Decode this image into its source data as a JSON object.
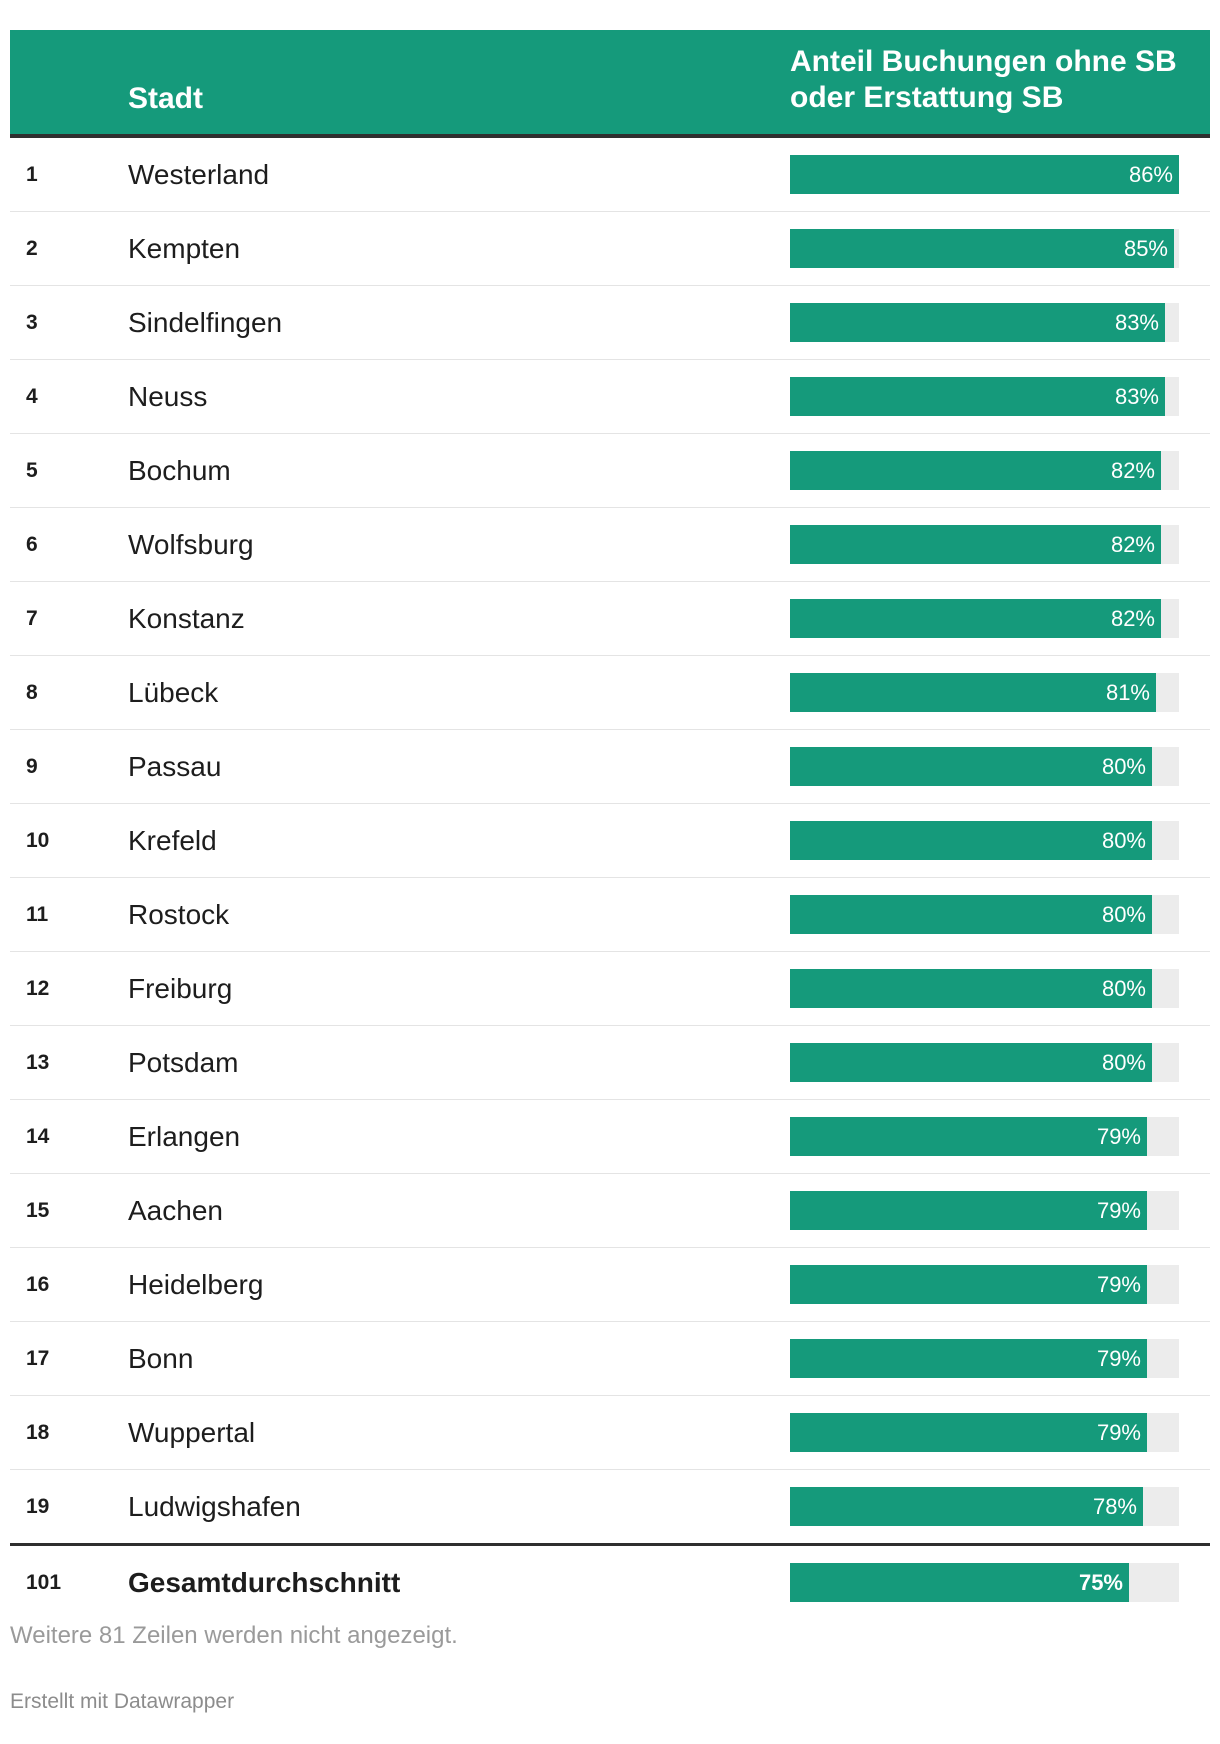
{
  "header": {
    "city_label": "Stadt",
    "share_label_line1": "Anteil Buchungen ohne SB",
    "share_label_line2": "oder Erstattung SB"
  },
  "chart_data": {
    "type": "table",
    "columns": [
      "",
      "Stadt",
      "Anteil Buchungen ohne SB oder Erstattung SB"
    ],
    "rows": [
      {
        "rank": "1",
        "city": "Westerland",
        "value": 86,
        "label": "86%"
      },
      {
        "rank": "2",
        "city": "Kempten",
        "value": 85,
        "label": "85%"
      },
      {
        "rank": "3",
        "city": "Sindelfingen",
        "value": 83,
        "label": "83%"
      },
      {
        "rank": "4",
        "city": "Neuss",
        "value": 83,
        "label": "83%"
      },
      {
        "rank": "5",
        "city": "Bochum",
        "value": 82,
        "label": "82%"
      },
      {
        "rank": "6",
        "city": "Wolfsburg",
        "value": 82,
        "label": "82%"
      },
      {
        "rank": "7",
        "city": "Konstanz",
        "value": 82,
        "label": "82%"
      },
      {
        "rank": "8",
        "city": "Lübeck",
        "value": 81,
        "label": "81%"
      },
      {
        "rank": "9",
        "city": "Passau",
        "value": 80,
        "label": "80%"
      },
      {
        "rank": "10",
        "city": "Krefeld",
        "value": 80,
        "label": "80%"
      },
      {
        "rank": "11",
        "city": "Rostock",
        "value": 80,
        "label": "80%"
      },
      {
        "rank": "12",
        "city": "Freiburg",
        "value": 80,
        "label": "80%"
      },
      {
        "rank": "13",
        "city": "Potsdam",
        "value": 80,
        "label": "80%"
      },
      {
        "rank": "14",
        "city": "Erlangen",
        "value": 79,
        "label": "79%"
      },
      {
        "rank": "15",
        "city": "Aachen",
        "value": 79,
        "label": "79%"
      },
      {
        "rank": "16",
        "city": "Heidelberg",
        "value": 79,
        "label": "79%"
      },
      {
        "rank": "17",
        "city": "Bonn",
        "value": 79,
        "label": "79%"
      },
      {
        "rank": "18",
        "city": "Wuppertal",
        "value": 79,
        "label": "79%"
      },
      {
        "rank": "19",
        "city": "Ludwigshafen",
        "value": 78,
        "label": "78%"
      }
    ],
    "total": {
      "rank": "101",
      "city": "Gesamtdurchschnitt",
      "value": 75,
      "label": "75%"
    },
    "bar_max": 86,
    "colors": {
      "bar": "#159a7b",
      "track": "#ececec",
      "header": "#159a7b"
    }
  },
  "notes": "Weitere 81 Zeilen werden nicht angezeigt.",
  "footer": "Erstellt mit Datawrapper"
}
